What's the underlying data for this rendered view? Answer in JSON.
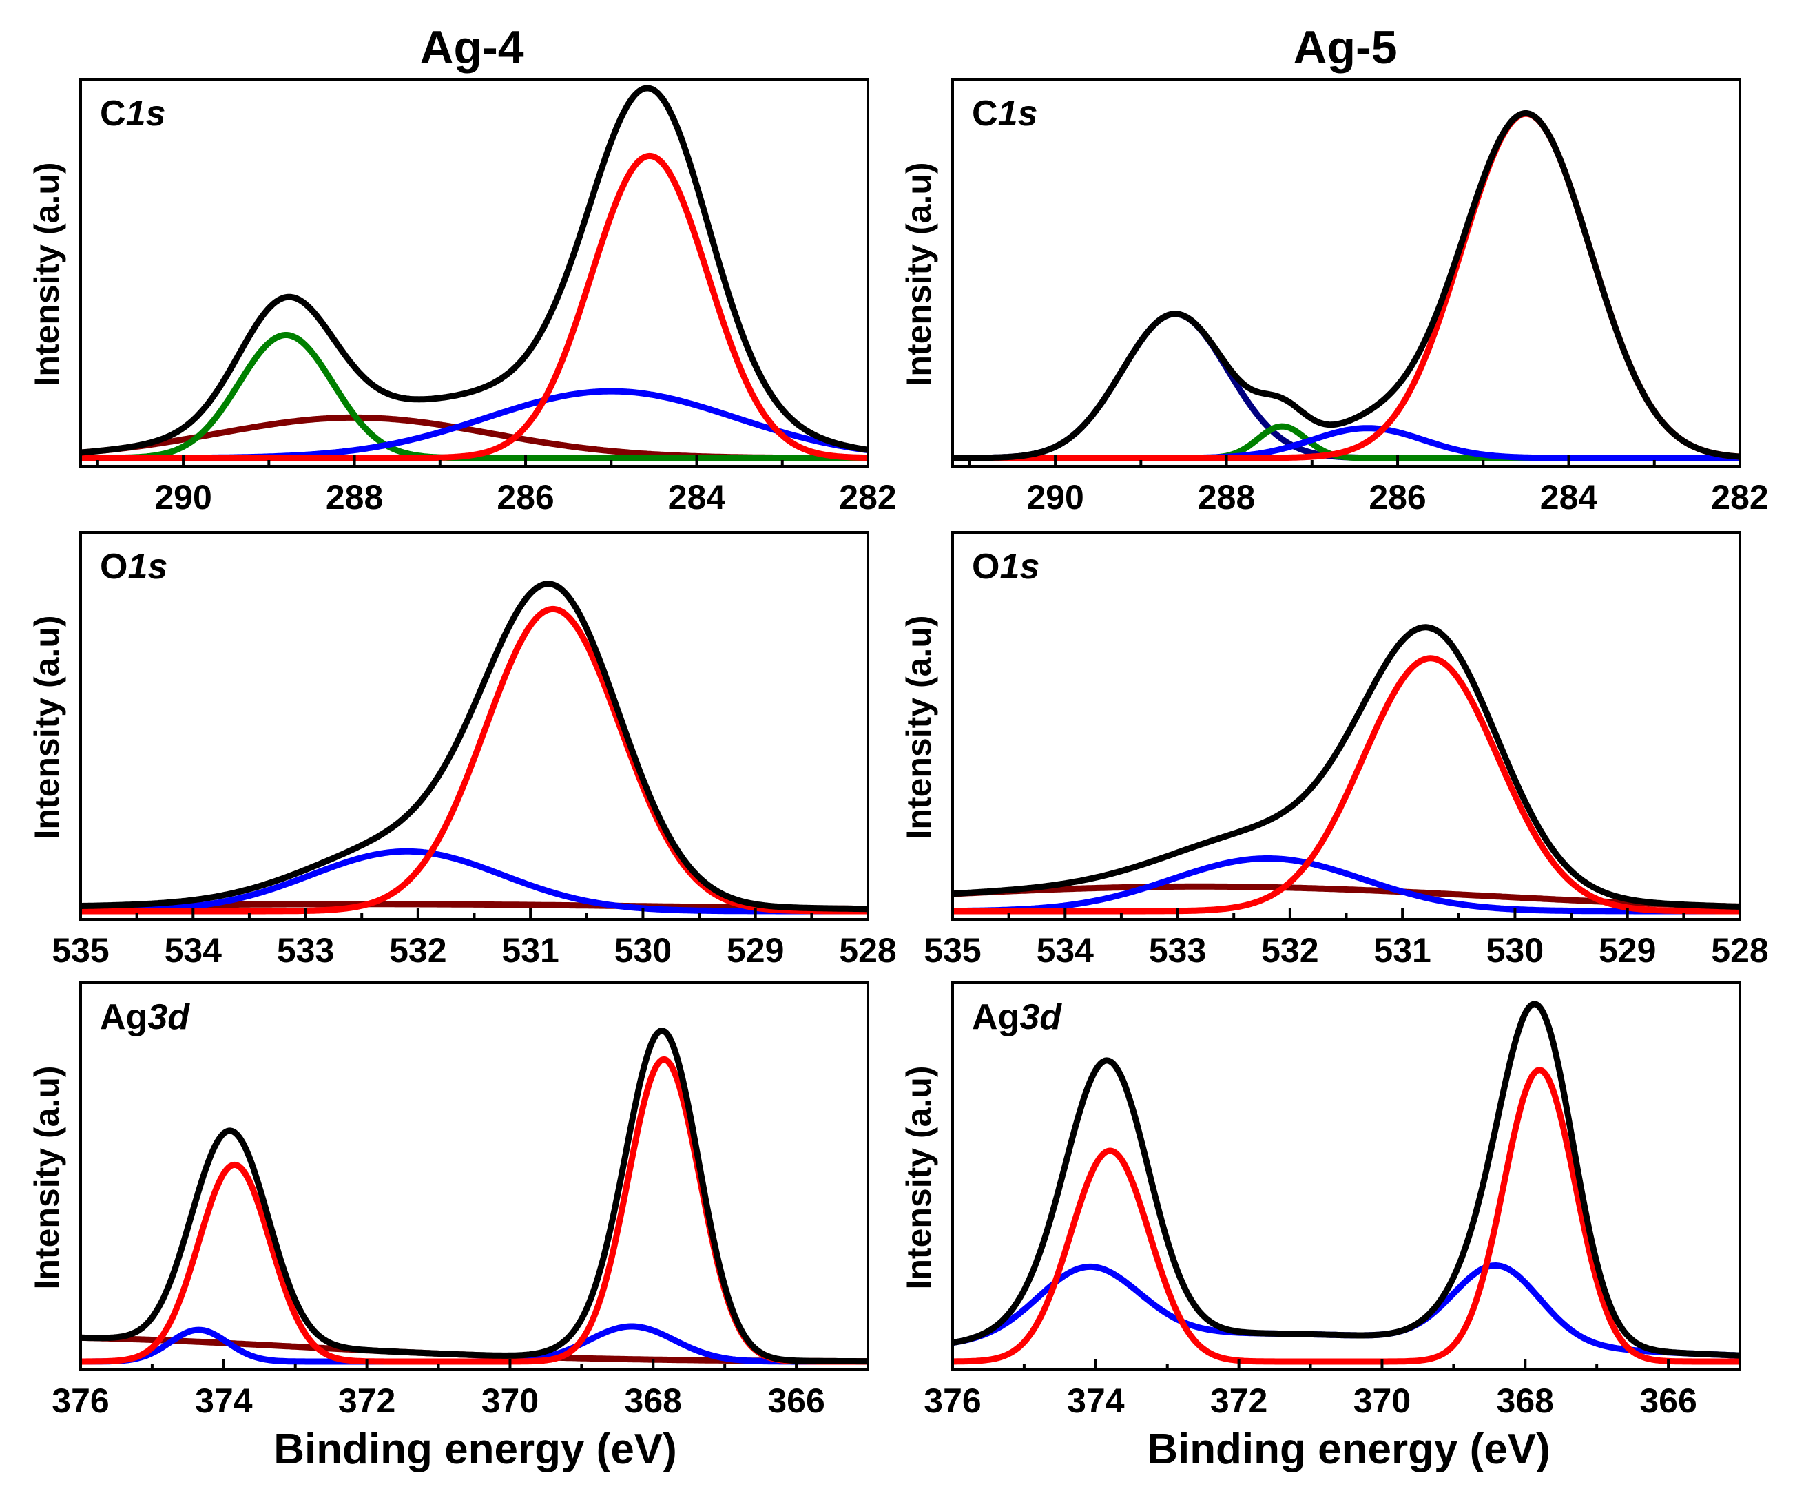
{
  "figure": {
    "columns": [
      "Ag-4",
      "Ag-5"
    ],
    "ylabel": "Intensity (a.u)",
    "xlabel": "Binding energy (eV)"
  },
  "colors": {
    "envelope": "#000000",
    "red": "#ff0000",
    "blue": "#0000ff",
    "green": "#008000",
    "brown": "#800000",
    "navy": "#000080"
  },
  "chart_data": [
    {
      "type": "line",
      "column": "Ag-4",
      "label_main": "C",
      "label_ital": "1s",
      "xlim": [
        291.2,
        282
      ],
      "ylim": [
        0,
        1
      ],
      "xticks": [
        290,
        288,
        286,
        284,
        282
      ],
      "minor_step": 1,
      "series": [
        {
          "color": "#000000",
          "components": "envelope"
        },
        {
          "color": "#ff0000",
          "peaks": [
            [
              284.55,
              0.86,
              0.68
            ]
          ]
        },
        {
          "color": "#0000ff",
          "peaks": [
            [
              285.0,
              0.19,
              1.45
            ]
          ]
        },
        {
          "color": "#008000",
          "peaks": [
            [
              288.8,
              0.35,
              0.55
            ]
          ]
        },
        {
          "color": "#800000",
          "peaks": [
            [
              288.0,
              0.115,
              1.6
            ]
          ]
        }
      ]
    },
    {
      "type": "line",
      "column": "Ag-5",
      "label_main": "C",
      "label_ital": "1s",
      "xlim": [
        291.2,
        282
      ],
      "ylim": [
        0,
        1
      ],
      "xticks": [
        290,
        288,
        286,
        284,
        282
      ],
      "minor_step": 1,
      "series": [
        {
          "color": "#000000",
          "components": "envelope"
        },
        {
          "color": "#ff0000",
          "peaks": [
            [
              284.5,
              0.98,
              0.75
            ]
          ]
        },
        {
          "color": "#0000ff",
          "peaks": [
            [
              286.35,
              0.085,
              0.65
            ]
          ]
        },
        {
          "color": "#008000",
          "peaks": [
            [
              287.35,
              0.09,
              0.28
            ]
          ]
        },
        {
          "color": "#000080",
          "peaks": [
            [
              288.6,
              0.41,
              0.62
            ]
          ]
        }
      ]
    },
    {
      "type": "line",
      "column": "Ag-4",
      "label_main": "O",
      "label_ital": "1s",
      "xlim": [
        535,
        528
      ],
      "ylim": [
        0,
        1
      ],
      "xticks": [
        535,
        534,
        533,
        532,
        531,
        530,
        529,
        528
      ],
      "minor_step": 0.5,
      "series": [
        {
          "color": "#000000",
          "components": "envelope"
        },
        {
          "color": "#ff0000",
          "peaks": [
            [
              530.8,
              0.86,
              0.6
            ]
          ]
        },
        {
          "color": "#0000ff",
          "peaks": [
            [
              532.1,
              0.17,
              0.85
            ]
          ]
        },
        {
          "color": "#800000",
          "peaks": [
            [
              532.5,
              0.02,
              3.0
            ]
          ]
        }
      ]
    },
    {
      "type": "line",
      "column": "Ag-5",
      "label_main": "O",
      "label_ital": "1s",
      "xlim": [
        535,
        528
      ],
      "ylim": [
        0,
        1
      ],
      "xticks": [
        535,
        534,
        533,
        532,
        531,
        530,
        529,
        528
      ],
      "minor_step": 0.5,
      "series": [
        {
          "color": "#000000",
          "components": "envelope"
        },
        {
          "color": "#ff0000",
          "peaks": [
            [
              530.75,
              0.72,
              0.6
            ]
          ]
        },
        {
          "color": "#0000ff",
          "peaks": [
            [
              532.2,
              0.15,
              0.85
            ]
          ]
        },
        {
          "color": "#800000",
          "peaks": [
            [
              532.8,
              0.07,
              2.6
            ]
          ]
        }
      ]
    },
    {
      "type": "line",
      "column": "Ag-4",
      "label_main": "Ag",
      "label_ital": "3d",
      "xlim": [
        376,
        365
      ],
      "ylim": [
        0,
        1
      ],
      "xticks": [
        376,
        374,
        372,
        370,
        368,
        366
      ],
      "minor_step": 1,
      "series": [
        {
          "color": "#000000",
          "components": "envelope"
        },
        {
          "color": "#ff0000",
          "peaks": [
            [
              367.85,
              0.86,
              0.5
            ],
            [
              373.85,
              0.56,
              0.5
            ]
          ]
        },
        {
          "color": "#0000ff",
          "peaks": [
            [
              368.3,
              0.1,
              0.6
            ],
            [
              374.35,
              0.09,
              0.4
            ]
          ]
        },
        {
          "color": "#800000",
          "peaks": [
            [
              377.0,
              0.07,
              4.0
            ]
          ]
        }
      ]
    },
    {
      "type": "line",
      "column": "Ag-5",
      "label_main": "Ag",
      "label_ital": "3d",
      "xlim": [
        376,
        365
      ],
      "ylim": [
        0,
        1
      ],
      "xticks": [
        376,
        374,
        372,
        370,
        368,
        366
      ],
      "minor_step": 1,
      "series": [
        {
          "color": "#000000",
          "components": "envelope"
        },
        {
          "color": "#ff0000",
          "peaks": [
            [
              367.8,
              0.83,
              0.5
            ],
            [
              373.8,
              0.6,
              0.55
            ]
          ]
        },
        {
          "color": "#0000ff",
          "peaks": [
            [
              368.4,
              0.22,
              0.6
            ],
            [
              374.1,
              0.2,
              0.7
            ],
            [
              372.0,
              0.08,
              4.0
            ]
          ]
        }
      ]
    }
  ]
}
